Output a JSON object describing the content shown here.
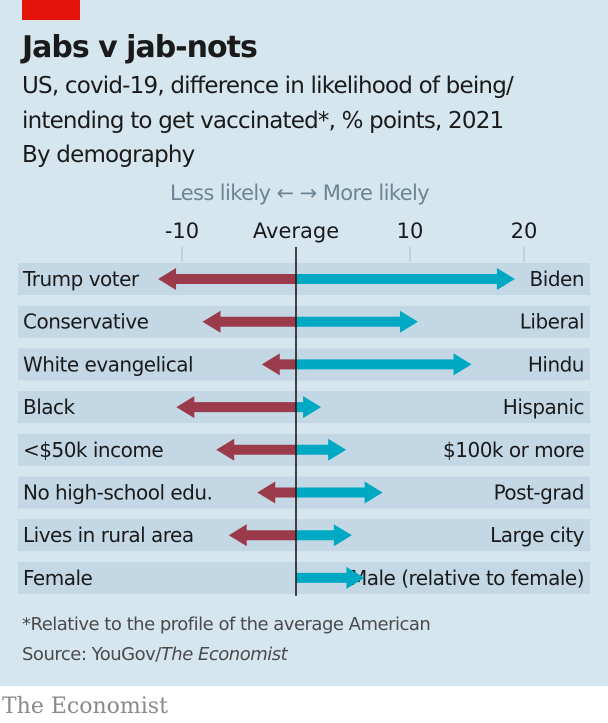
{
  "header": {
    "title": "Jabs v jab-nots",
    "subtitle_line1": "US, covid-19, difference in likelihood of being/",
    "subtitle_line2": "intending to get vaccinated*, % points, 2021",
    "subtitle_line3": "By demography",
    "direction_label": "Less likely ←  → More likely"
  },
  "footer": {
    "note": "*Relative to the profile of the average American",
    "source_prefix": "Source: YouGov/",
    "source_italic": "The Economist",
    "brand": "The Economist"
  },
  "colors": {
    "background": "#d6e6ef",
    "row_band": "#c3d8e4",
    "negative": "#9b3a4a",
    "positive": "#00a9c3",
    "accent_red": "#e3120b"
  },
  "chart_data": {
    "type": "bar",
    "title": "Jabs v jab-nots",
    "xlabel": "% points difference",
    "xlim": [
      -13,
      25
    ],
    "x_ticks": [
      {
        "value": -10,
        "label": "-10"
      },
      {
        "value": 0,
        "label": "Average"
      },
      {
        "value": 10,
        "label": "10"
      },
      {
        "value": 20,
        "label": "20"
      }
    ],
    "series": [
      {
        "name": "Less likely group",
        "color": "#9b3a4a"
      },
      {
        "name": "More likely group",
        "color": "#00a9c3"
      }
    ],
    "rows": [
      {
        "left_label": "Trump voter",
        "left_value": -12.1,
        "right_label": "Biden",
        "right_value": 19.2
      },
      {
        "left_label": "Conservative",
        "left_value": -8.2,
        "right_label": "Liberal",
        "right_value": 10.7
      },
      {
        "left_label": "White evangelical",
        "left_value": -3.0,
        "right_label": "Hindu",
        "right_value": 15.4
      },
      {
        "left_label": "Black",
        "left_value": -10.5,
        "right_label": "Hispanic",
        "right_value": 2.2
      },
      {
        "left_label": "<$50k income",
        "left_value": -7.0,
        "right_label": "$100k or more",
        "right_value": 4.4
      },
      {
        "left_label": "No high-school edu.",
        "left_value": -3.4,
        "right_label": "Post-grad",
        "right_value": 7.6
      },
      {
        "left_label": "Lives in rural area",
        "left_value": -5.9,
        "right_label": "Large city",
        "right_value": 4.9
      },
      {
        "left_label": "Female",
        "left_value": 0,
        "right_label": "Male (relative to female)",
        "right_value": 6.0
      }
    ]
  }
}
